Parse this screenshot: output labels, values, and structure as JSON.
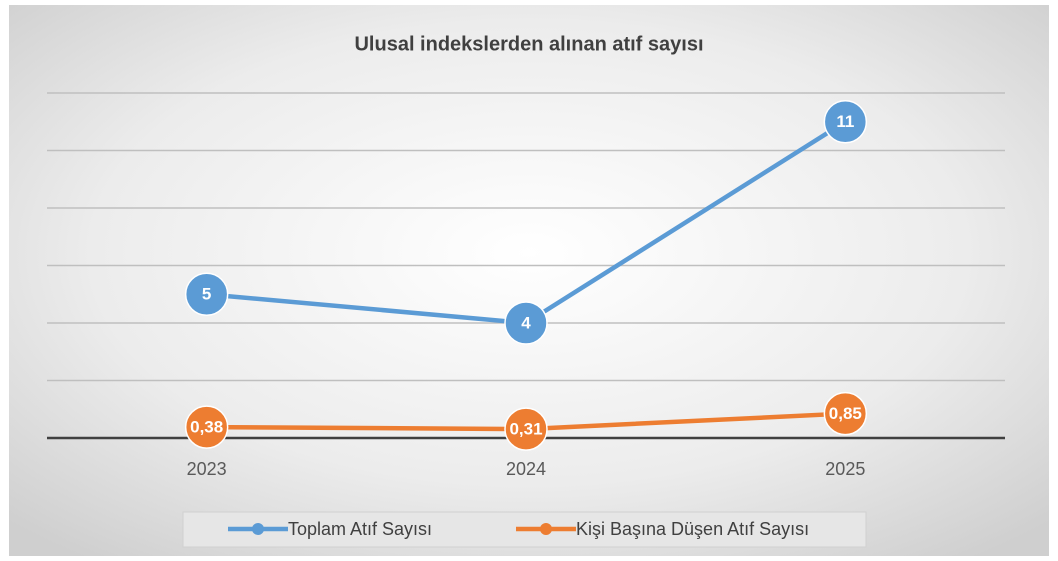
{
  "chart_data": {
    "type": "line",
    "title": "Ulusal indekslerden alınan atıf sayısı",
    "categories": [
      "2023",
      "2024",
      "2025"
    ],
    "series": [
      {
        "name": "Toplam Atıf Sayısı",
        "color": "#5b9bd5",
        "values": [
          5,
          4,
          11
        ]
      },
      {
        "name": "Kişi Başına Düşen Atıf Sayısı",
        "color": "#ed7d31",
        "values": [
          0.38,
          0.31,
          0.85
        ],
        "value_labels": [
          "0,38",
          "0,31",
          "0,85"
        ]
      }
    ],
    "ylim": [
      0,
      12
    ],
    "yticks": [
      0,
      2,
      4,
      6,
      8,
      10,
      12
    ],
    "grid": true,
    "legend": "bottom"
  }
}
